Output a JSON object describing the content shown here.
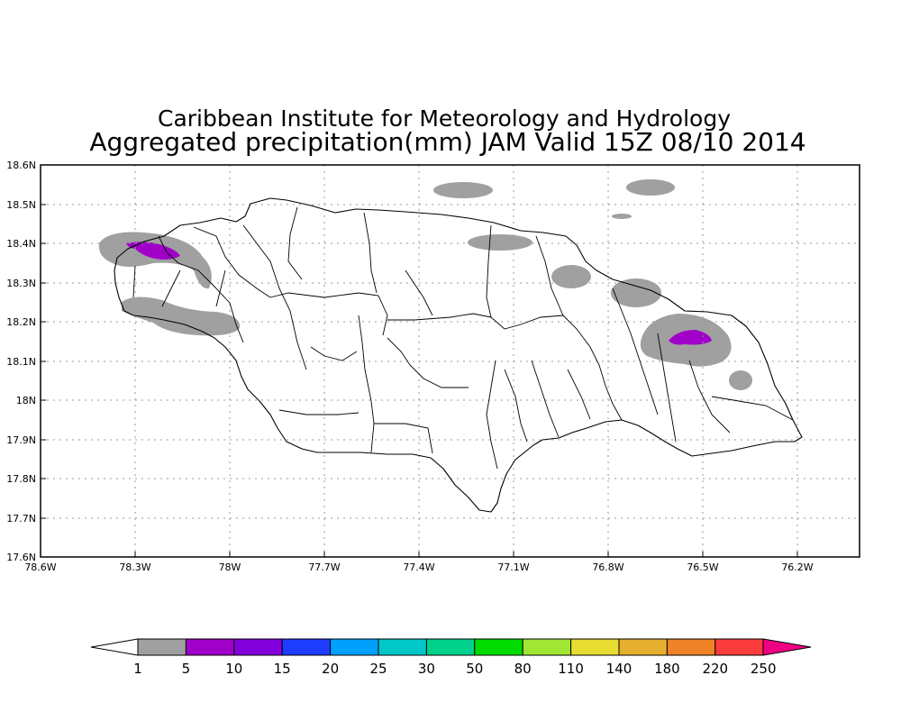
{
  "title": {
    "line1": "Caribbean Institute for Meteorology and Hydrology",
    "line2": "Aggregated precipitation(mm) JAM Valid 15Z 08/10 2014"
  },
  "axes": {
    "lat_labels": [
      "18.6N",
      "18.5N",
      "18.4N",
      "18.3N",
      "18.2N",
      "18.1N",
      "18N",
      "17.9N",
      "17.8N",
      "17.7N",
      "17.6N"
    ],
    "lon_labels": [
      "78.6W",
      "78.3W",
      "78W",
      "77.7W",
      "77.4W",
      "77.1W",
      "76.8W",
      "76.5W",
      "76.2W"
    ],
    "lat_range": [
      17.6,
      18.6
    ],
    "lon_range": [
      -78.6,
      -76.0
    ],
    "grid": true
  },
  "colorbar": {
    "labels": [
      "1",
      "5",
      "10",
      "15",
      "20",
      "25",
      "30",
      "50",
      "80",
      "110",
      "140",
      "180",
      "220",
      "250"
    ],
    "colors": [
      "#a0a0a0",
      "#a000c8",
      "#8200dc",
      "#1e3cff",
      "#00a0ff",
      "#00c8c8",
      "#00d28c",
      "#00dc00",
      "#a0e632",
      "#e6dc32",
      "#e6af2d",
      "#f08228",
      "#fa3c3c",
      "#f00082"
    ]
  },
  "precip_areas": [
    {
      "name": "northwest-cluster",
      "category": "1-5 mm",
      "color": "#a0a0a0"
    },
    {
      "name": "northwest-core",
      "category": "5-10 mm",
      "color": "#a000c8"
    },
    {
      "name": "east-cluster",
      "category": "1-5 mm",
      "color": "#a0a0a0"
    },
    {
      "name": "east-core",
      "category": "5-10 mm",
      "color": "#a000c8"
    }
  ]
}
